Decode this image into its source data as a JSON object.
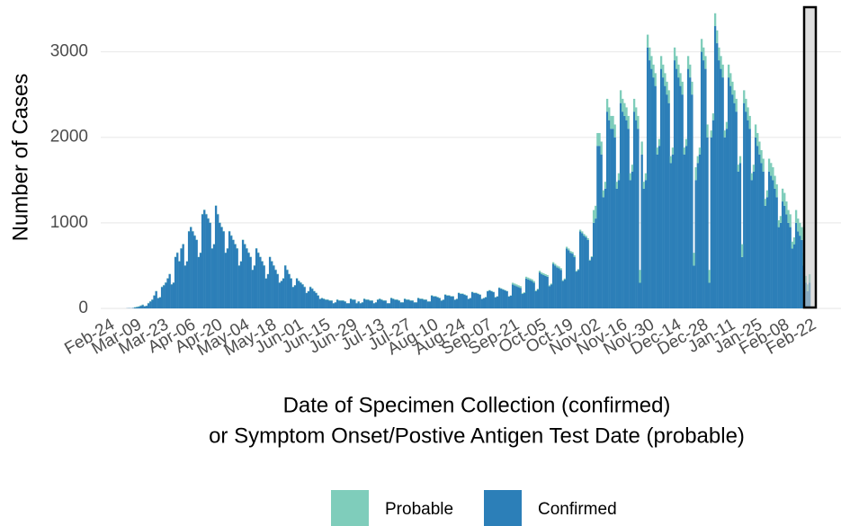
{
  "chart_data": {
    "type": "stacked_bar",
    "x_label": "Date of Specimen Collection (confirmed)",
    "x_label_2": "or Symptom Onset/Postive Antigen Test Date (probable)",
    "y_label": "Number of Cases",
    "ylim": [
      0,
      3500
    ],
    "yticks": [
      0,
      1000,
      2000,
      3000
    ],
    "grid": true,
    "categories": [
      "Feb-24",
      null,
      null,
      null,
      null,
      null,
      null,
      null,
      null,
      null,
      null,
      null,
      null,
      null,
      "Mar-09",
      null,
      null,
      null,
      null,
      null,
      null,
      null,
      null,
      null,
      null,
      null,
      null,
      null,
      "Mar-23",
      null,
      null,
      null,
      null,
      null,
      null,
      null,
      null,
      null,
      null,
      null,
      null,
      null,
      "Apr-06",
      null,
      null,
      null,
      null,
      null,
      null,
      null,
      null,
      null,
      null,
      null,
      null,
      null,
      "Apr-20",
      null,
      null,
      null,
      null,
      null,
      null,
      null,
      null,
      null,
      null,
      null,
      null,
      null,
      "May-04",
      null,
      null,
      null,
      null,
      null,
      null,
      null,
      null,
      null,
      null,
      null,
      null,
      null,
      "May-18",
      null,
      null,
      null,
      null,
      null,
      null,
      null,
      null,
      null,
      null,
      null,
      null,
      null,
      "Jun-01",
      null,
      null,
      null,
      null,
      null,
      null,
      null,
      null,
      null,
      null,
      null,
      null,
      null,
      "Jun-15",
      null,
      null,
      null,
      null,
      null,
      null,
      null,
      null,
      null,
      null,
      null,
      null,
      null,
      "Jun-29",
      null,
      null,
      null,
      null,
      null,
      null,
      null,
      null,
      null,
      null,
      null,
      null,
      null,
      "Jul-13",
      null,
      null,
      null,
      null,
      null,
      null,
      null,
      null,
      null,
      null,
      null,
      null,
      null,
      "Jul-27",
      null,
      null,
      null,
      null,
      null,
      null,
      null,
      null,
      null,
      null,
      null,
      null,
      null,
      "Aug-10",
      null,
      null,
      null,
      null,
      null,
      null,
      null,
      null,
      null,
      null,
      null,
      null,
      null,
      "Aug-24",
      null,
      null,
      null,
      null,
      null,
      null,
      null,
      null,
      null,
      null,
      null,
      null,
      null,
      "Sep-07",
      null,
      null,
      null,
      null,
      null,
      null,
      null,
      null,
      null,
      null,
      null,
      null,
      null,
      "Sep-21",
      null,
      null,
      null,
      null,
      null,
      null,
      null,
      null,
      null,
      null,
      null,
      null,
      null,
      "Oct-05",
      null,
      null,
      null,
      null,
      null,
      null,
      null,
      null,
      null,
      null,
      null,
      null,
      null,
      "Oct-19",
      null,
      null,
      null,
      null,
      null,
      null,
      null,
      null,
      null,
      null,
      null,
      null,
      null,
      "Nov-02",
      null,
      null,
      null,
      null,
      null,
      null,
      null,
      null,
      null,
      null,
      null,
      null,
      null,
      "Nov-16",
      null,
      null,
      null,
      null,
      null,
      null,
      null,
      null,
      null,
      null,
      null,
      null,
      null,
      "Nov-30",
      null,
      null,
      null,
      null,
      null,
      null,
      null,
      null,
      null,
      null,
      null,
      null,
      null,
      "Dec-14",
      null,
      null,
      null,
      null,
      null,
      null,
      null,
      null,
      null,
      null,
      null,
      null,
      null,
      "Dec-28",
      null,
      null,
      null,
      null,
      null,
      null,
      null,
      null,
      null,
      null,
      null,
      null,
      null,
      "Jan-11",
      null,
      null,
      null,
      null,
      null,
      null,
      null,
      null,
      null,
      null,
      null,
      null,
      null,
      "Jan-25",
      null,
      null,
      null,
      null,
      null,
      null,
      null,
      null,
      null,
      null,
      null,
      null,
      null,
      "Feb-08",
      null,
      null,
      null,
      null,
      null,
      null,
      null,
      null,
      null,
      null,
      null,
      null,
      null,
      "Feb-22"
    ],
    "series": [
      {
        "name": "Probable",
        "color": "#7fcdbb",
        "values": [
          0,
          0,
          0,
          0,
          0,
          0,
          0,
          0,
          0,
          0,
          0,
          0,
          0,
          0,
          5,
          5,
          5,
          5,
          5,
          3,
          3,
          5,
          5,
          5,
          5,
          5,
          3,
          3,
          5,
          5,
          5,
          5,
          5,
          3,
          3,
          5,
          5,
          5,
          5,
          5,
          3,
          3,
          5,
          5,
          5,
          5,
          5,
          3,
          3,
          5,
          5,
          5,
          5,
          5,
          3,
          3,
          5,
          5,
          5,
          5,
          5,
          3,
          3,
          5,
          5,
          5,
          5,
          5,
          3,
          3,
          5,
          5,
          5,
          5,
          5,
          3,
          3,
          5,
          5,
          5,
          5,
          5,
          3,
          3,
          5,
          5,
          5,
          5,
          5,
          3,
          3,
          5,
          5,
          5,
          5,
          5,
          3,
          3,
          5,
          5,
          5,
          5,
          5,
          3,
          3,
          5,
          5,
          5,
          5,
          5,
          3,
          3,
          5,
          5,
          5,
          5,
          5,
          3,
          3,
          5,
          5,
          5,
          5,
          5,
          3,
          3,
          5,
          5,
          5,
          5,
          5,
          3,
          3,
          5,
          5,
          5,
          5,
          5,
          3,
          3,
          5,
          5,
          5,
          5,
          5,
          3,
          3,
          5,
          5,
          5,
          5,
          5,
          3,
          3,
          5,
          5,
          5,
          5,
          5,
          3,
          3,
          5,
          5,
          5,
          5,
          5,
          3,
          3,
          5,
          5,
          5,
          5,
          5,
          3,
          3,
          5,
          5,
          5,
          5,
          5,
          3,
          3,
          5,
          5,
          5,
          5,
          5,
          3,
          3,
          5,
          5,
          5,
          5,
          5,
          3,
          3,
          5,
          5,
          5,
          5,
          5,
          3,
          3,
          5,
          5,
          5,
          5,
          5,
          3,
          3,
          20,
          20,
          20,
          20,
          20,
          10,
          10,
          20,
          20,
          20,
          20,
          20,
          10,
          10,
          20,
          20,
          20,
          20,
          20,
          10,
          10,
          20,
          20,
          20,
          20,
          20,
          10,
          10,
          20,
          20,
          20,
          20,
          20,
          10,
          10,
          20,
          20,
          20,
          20,
          20,
          10,
          10,
          150,
          150,
          150,
          150,
          150,
          80,
          80,
          150,
          150,
          150,
          150,
          150,
          80,
          80,
          150,
          150,
          150,
          150,
          150,
          80,
          80,
          150,
          150,
          150,
          150,
          150,
          80,
          80,
          150,
          150,
          150,
          150,
          150,
          80,
          80,
          150,
          150,
          150,
          150,
          150,
          80,
          80,
          150,
          150,
          150,
          150,
          150,
          80,
          80,
          150,
          150,
          150,
          150,
          150,
          80,
          80,
          150,
          150,
          150,
          150,
          150,
          80,
          80,
          150,
          150,
          150,
          150,
          150,
          80,
          80,
          150,
          150,
          150,
          150,
          150,
          80,
          80,
          150,
          150,
          150,
          150,
          150,
          80,
          80,
          150,
          150,
          150,
          150,
          150,
          80,
          80,
          150,
          150,
          150,
          150,
          150,
          80,
          80,
          150,
          150,
          150,
          150,
          150,
          80,
          80,
          150,
          150,
          150,
          150,
          150,
          80,
          80,
          100
        ]
      },
      {
        "name": "Confirmed",
        "color": "#2c7fb8",
        "values": [
          0,
          0,
          0,
          0,
          0,
          0,
          0,
          0,
          0,
          0,
          2,
          3,
          2,
          5,
          10,
          15,
          20,
          30,
          40,
          25,
          30,
          60,
          80,
          100,
          150,
          200,
          120,
          130,
          250,
          270,
          300,
          350,
          400,
          280,
          300,
          600,
          650,
          550,
          700,
          750,
          500,
          550,
          900,
          950,
          900,
          850,
          800,
          600,
          650,
          1100,
          1150,
          1100,
          1050,
          1000,
          700,
          750,
          1200,
          1100,
          1000,
          950,
          900,
          650,
          700,
          900,
          850,
          800,
          750,
          700,
          500,
          550,
          800,
          750,
          700,
          650,
          600,
          450,
          500,
          700,
          650,
          600,
          550,
          500,
          350,
          400,
          600,
          550,
          500,
          450,
          400,
          300,
          320,
          350,
          500,
          450,
          400,
          350,
          250,
          270,
          350,
          320,
          300,
          280,
          250,
          180,
          200,
          250,
          230,
          200,
          180,
          150,
          110,
          120,
          110,
          100,
          100,
          90,
          90,
          60,
          70,
          100,
          90,
          90,
          90,
          80,
          60,
          60,
          110,
          100,
          100,
          60,
          80,
          60,
          70,
          110,
          100,
          100,
          90,
          90,
          60,
          70,
          100,
          110,
          100,
          90,
          90,
          60,
          60,
          120,
          110,
          100,
          100,
          90,
          70,
          70,
          110,
          100,
          100,
          90,
          90,
          70,
          70,
          120,
          110,
          110,
          100,
          100,
          80,
          80,
          150,
          140,
          140,
          130,
          120,
          90,
          100,
          160,
          150,
          150,
          140,
          140,
          100,
          110,
          180,
          170,
          170,
          160,
          150,
          110,
          120,
          190,
          180,
          180,
          170,
          160,
          110,
          120,
          130,
          200,
          210,
          200,
          190,
          130,
          140,
          240,
          230,
          220,
          210,
          200,
          140,
          150,
          280,
          270,
          260,
          250,
          240,
          170,
          180,
          350,
          340,
          330,
          320,
          300,
          200,
          220,
          420,
          400,
          390,
          380,
          370,
          260,
          280,
          520,
          500,
          480,
          470,
          450,
          320,
          340,
          700,
          680,
          650,
          640,
          600,
          430,
          450,
          900,
          880,
          850,
          830,
          800,
          560,
          600,
          1000,
          1050,
          1900,
          1900,
          1800,
          1300,
          1400,
          2300,
          2200,
          2100,
          2100,
          2000,
          1400,
          1500,
          2400,
          2300,
          2250,
          2200,
          2100,
          1500,
          1600,
          2300,
          2200,
          2100,
          300,
          1800,
          1400,
          1500,
          3050,
          2900,
          2800,
          2700,
          2600,
          1800,
          1900,
          2800,
          2700,
          2600,
          2500,
          2400,
          1700,
          1800,
          2900,
          2800,
          2700,
          2600,
          2500,
          1800,
          1900,
          2800,
          2700,
          2500,
          500,
          1500,
          1700,
          1800,
          3000,
          2900,
          2800,
          2000,
          300,
          2000,
          2200,
          3300,
          3100,
          2900,
          2800,
          2700,
          2000,
          2100,
          2700,
          2600,
          2500,
          2400,
          2300,
          1600,
          1700,
          600,
          2400,
          2300,
          2200,
          2100,
          1500,
          1600,
          2000,
          1900,
          1800,
          1700,
          1600,
          1200,
          1300,
          1600,
          1550,
          1500,
          1400,
          1300,
          950,
          1000,
          1250,
          1200,
          1100,
          1000,
          950,
          700,
          750,
          1000,
          900,
          850,
          800,
          500,
          300,
          200,
          300
        ]
      }
    ]
  }
}
